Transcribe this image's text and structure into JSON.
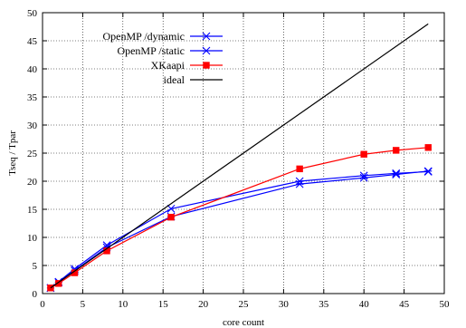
{
  "chart_data": {
    "type": "line",
    "xlabel": "core count",
    "ylabel": "Tseq / Tpar",
    "xlim": [
      0,
      50
    ],
    "ylim": [
      0,
      50
    ],
    "xticks": [
      0,
      5,
      10,
      15,
      20,
      25,
      30,
      35,
      40,
      45,
      50
    ],
    "yticks": [
      0,
      5,
      10,
      15,
      20,
      25,
      30,
      35,
      40,
      45,
      50
    ],
    "grid": true,
    "legend_position": "top-left",
    "series": [
      {
        "name": "OpenMP /dynamic",
        "color": "#0000ff",
        "marker": "x",
        "x": [
          1,
          2,
          4,
          8,
          16,
          32,
          40,
          44,
          48
        ],
        "y": [
          1.0,
          2.1,
          4.4,
          8.6,
          15.1,
          20.0,
          21.0,
          21.4,
          21.7
        ]
      },
      {
        "name": "OpenMP /static",
        "color": "#0000ff",
        "marker": "asterisk",
        "x": [
          1,
          2,
          4,
          8,
          16,
          32,
          40,
          44,
          48
        ],
        "y": [
          1.0,
          2.0,
          4.1,
          8.2,
          13.7,
          19.5,
          20.6,
          21.2,
          21.8
        ]
      },
      {
        "name": "XKaapi",
        "color": "#ff0000",
        "marker": "square",
        "x": [
          1,
          2,
          4,
          8,
          16,
          32,
          40,
          44,
          48
        ],
        "y": [
          1.0,
          1.8,
          3.7,
          7.6,
          13.6,
          22.2,
          24.8,
          25.5,
          26.0
        ]
      },
      {
        "name": "ideal",
        "color": "#000000",
        "marker": "none",
        "x": [
          1,
          48
        ],
        "y": [
          1,
          48
        ]
      }
    ]
  }
}
